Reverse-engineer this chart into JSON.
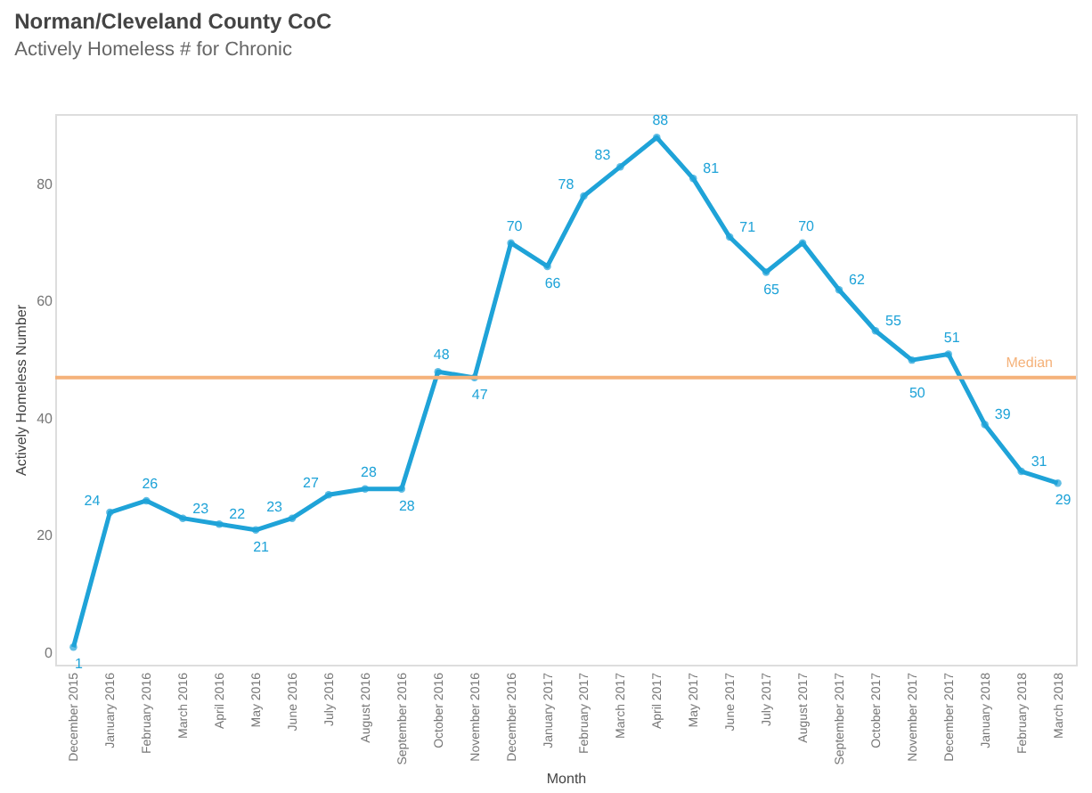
{
  "chart_data": {
    "type": "line",
    "title": "Norman/Cleveland County CoC",
    "subtitle": "Actively Homeless # for Chronic",
    "xlabel": "Month",
    "ylabel": "Actively Homeless Number",
    "categories": [
      "December 2015",
      "January 2016",
      "February 2016",
      "March 2016",
      "April 2016",
      "May 2016",
      "June 2016",
      "July 2016",
      "August 2016",
      "September 2016",
      "October 2016",
      "November 2016",
      "December 2016",
      "January 2017",
      "February 2017",
      "March 2017",
      "April 2017",
      "May 2017",
      "June 2017",
      "July 2017",
      "August 2017",
      "September 2017",
      "October 2017",
      "November 2017",
      "December 2017",
      "January 2018",
      "February 2018",
      "March 2018"
    ],
    "series": [
      {
        "color": "#1fa3d8",
        "values": [
          1,
          24,
          26,
          23,
          22,
          21,
          23,
          27,
          28,
          28,
          48,
          47,
          70,
          66,
          78,
          83,
          88,
          81,
          71,
          65,
          70,
          62,
          55,
          50,
          51,
          39,
          31,
          29
        ]
      }
    ],
    "ylim": [
      -2,
      92
    ],
    "yticks": [
      0,
      20,
      40,
      60,
      80
    ],
    "grid": false,
    "marker": "circle",
    "line_style": "solid",
    "data_labels": true,
    "ref_lines": [
      {
        "axis": "y",
        "value": 47,
        "label": "Median",
        "color": "#f5b27a"
      }
    ]
  }
}
